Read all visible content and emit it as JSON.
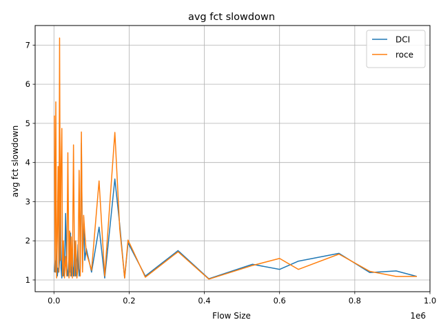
{
  "chart_data": {
    "type": "line",
    "title": "avg fct slowdown",
    "xlabel": "Flow Size",
    "ylabel": "avg fct slowdown",
    "x_offset_label": "1e6",
    "xlim": [
      -0.05,
      1.0
    ],
    "ylim": [
      0.7,
      7.5
    ],
    "x_ticks": [
      0.0,
      0.2,
      0.4,
      0.6,
      0.8,
      1.0
    ],
    "x_tick_labels": [
      "0.0",
      "0.2",
      "0.4",
      "0.6",
      "0.8",
      "1.0"
    ],
    "y_ticks": [
      1,
      2,
      3,
      4,
      5,
      6,
      7
    ],
    "y_tick_labels": [
      "1",
      "2",
      "3",
      "4",
      "5",
      "6",
      "7"
    ],
    "grid": true,
    "legend_position": "top-right",
    "series": [
      {
        "name": "DCI",
        "color": "#1f77b4",
        "x": [
          0.001,
          0.003,
          0.005,
          0.007,
          0.009,
          0.011,
          0.013,
          0.015,
          0.017,
          0.019,
          0.021,
          0.023,
          0.025,
          0.028,
          0.031,
          0.034,
          0.037,
          0.04,
          0.042,
          0.044,
          0.046,
          0.049,
          0.052,
          0.055,
          0.058,
          0.061,
          0.064,
          0.067,
          0.07,
          0.073,
          0.076,
          0.079,
          0.082,
          0.086,
          0.1,
          0.12,
          0.135,
          0.162,
          0.175,
          0.188,
          0.197,
          0.243,
          0.33,
          0.412,
          0.528,
          0.6,
          0.65,
          0.758,
          0.84,
          0.91,
          0.965
        ],
        "y": [
          1.2,
          1.5,
          1.2,
          1.8,
          1.1,
          1.3,
          1.2,
          1.5,
          3.8,
          1.3,
          1.05,
          2.0,
          1.1,
          1.2,
          2.7,
          1.3,
          1.1,
          1.6,
          1.2,
          2.2,
          1.1,
          1.4,
          1.1,
          2.0,
          1.1,
          1.2,
          1.9,
          1.1,
          1.3,
          4.5,
          1.3,
          2.6,
          1.5,
          1.8,
          1.2,
          2.35,
          1.05,
          3.58,
          2.4,
          1.05,
          1.95,
          1.1,
          1.75,
          1.03,
          1.4,
          1.27,
          1.48,
          1.68,
          1.19,
          1.23,
          1.09
        ]
      },
      {
        "name": "roce",
        "color": "#ff7f0e",
        "x": [
          0.001,
          0.003,
          0.005,
          0.007,
          0.009,
          0.011,
          0.013,
          0.015,
          0.017,
          0.019,
          0.021,
          0.023,
          0.025,
          0.028,
          0.031,
          0.034,
          0.037,
          0.04,
          0.042,
          0.044,
          0.046,
          0.049,
          0.052,
          0.055,
          0.058,
          0.061,
          0.064,
          0.067,
          0.07,
          0.073,
          0.076,
          0.079,
          0.082,
          0.086,
          0.1,
          0.12,
          0.135,
          0.162,
          0.175,
          0.188,
          0.197,
          0.243,
          0.33,
          0.412,
          0.528,
          0.6,
          0.65,
          0.758,
          0.84,
          0.91,
          0.965
        ],
        "y": [
          5.2,
          1.2,
          5.55,
          1.05,
          2.1,
          3.9,
          1.2,
          7.18,
          1.5,
          3.95,
          4.87,
          1.1,
          2.0,
          1.05,
          1.6,
          1.1,
          4.25,
          1.05,
          2.25,
          1.1,
          2.1,
          1.05,
          4.45,
          1.1,
          2.0,
          1.05,
          1.3,
          3.8,
          1.1,
          4.78,
          1.2,
          2.65,
          2.2,
          1.7,
          1.25,
          3.53,
          1.1,
          4.77,
          2.3,
          1.05,
          2.02,
          1.07,
          1.72,
          1.02,
          1.37,
          1.55,
          1.27,
          1.66,
          1.22,
          1.09,
          1.09
        ]
      }
    ]
  }
}
